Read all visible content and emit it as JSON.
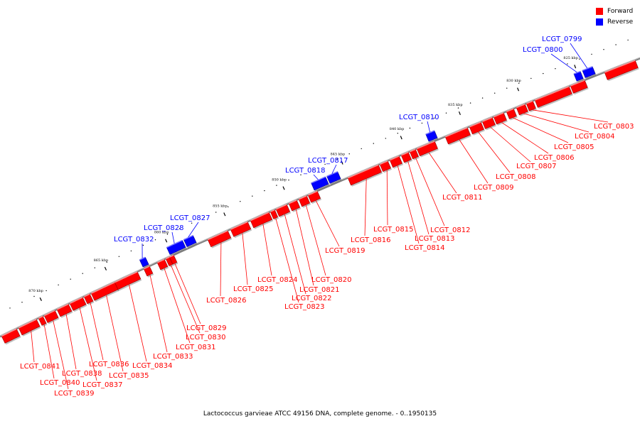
{
  "legend": {
    "forward_label": "Forward",
    "reverse_label": "Reverse",
    "forward_color": "#ff0000",
    "reverse_color": "#0000ff"
  },
  "caption": "Lactococcus garvieae ATCC 49156 DNA, complete genome. - 0..1950135",
  "colors": {
    "backbone": "#808080",
    "forward": "#ff0000",
    "reverse": "#0000ff"
  },
  "ticks": {
    "major": [
      "825 kbp",
      "830 kbp",
      "835 kbp",
      "840 kbp",
      "845 kbp",
      "850 kbp",
      "855 kbp",
      "860 kbp",
      "865 kbp",
      "870 kbp"
    ]
  },
  "genes": [
    {
      "name": "LCGT_0799",
      "strand": "reverse"
    },
    {
      "name": "LCGT_0800",
      "strand": "reverse"
    },
    {
      "name": "LCGT_0803",
      "strand": "forward"
    },
    {
      "name": "LCGT_0804",
      "strand": "forward"
    },
    {
      "name": "LCGT_0805",
      "strand": "forward"
    },
    {
      "name": "LCGT_0806",
      "strand": "forward"
    },
    {
      "name": "LCGT_0807",
      "strand": "forward"
    },
    {
      "name": "LCGT_0808",
      "strand": "forward"
    },
    {
      "name": "LCGT_0809",
      "strand": "forward"
    },
    {
      "name": "LCGT_0810",
      "strand": "reverse"
    },
    {
      "name": "LCGT_0811",
      "strand": "forward"
    },
    {
      "name": "LCGT_0812",
      "strand": "forward"
    },
    {
      "name": "LCGT_0813",
      "strand": "forward"
    },
    {
      "name": "LCGT_0814",
      "strand": "forward"
    },
    {
      "name": "LCGT_0815",
      "strand": "forward"
    },
    {
      "name": "LCGT_0816",
      "strand": "forward"
    },
    {
      "name": "LCGT_0817",
      "strand": "reverse"
    },
    {
      "name": "LCGT_0818",
      "strand": "reverse"
    },
    {
      "name": "LCGT_0819",
      "strand": "forward"
    },
    {
      "name": "LCGT_0820",
      "strand": "forward"
    },
    {
      "name": "LCGT_0821",
      "strand": "forward"
    },
    {
      "name": "LCGT_0822",
      "strand": "forward"
    },
    {
      "name": "LCGT_0823",
      "strand": "forward"
    },
    {
      "name": "LCGT_0824",
      "strand": "forward"
    },
    {
      "name": "LCGT_0825",
      "strand": "forward"
    },
    {
      "name": "LCGT_0826",
      "strand": "forward"
    },
    {
      "name": "LCGT_0827",
      "strand": "reverse"
    },
    {
      "name": "LCGT_0828",
      "strand": "reverse"
    },
    {
      "name": "LCGT_0829",
      "strand": "forward"
    },
    {
      "name": "LCGT_0830",
      "strand": "forward"
    },
    {
      "name": "LCGT_0831",
      "strand": "forward"
    },
    {
      "name": "LCGT_0832",
      "strand": "reverse"
    },
    {
      "name": "LCGT_0833",
      "strand": "forward"
    },
    {
      "name": "LCGT_0834",
      "strand": "forward"
    },
    {
      "name": "LCGT_0835",
      "strand": "forward"
    },
    {
      "name": "LCGT_0836",
      "strand": "forward"
    },
    {
      "name": "LCGT_0837",
      "strand": "forward"
    },
    {
      "name": "LCGT_0838",
      "strand": "forward"
    },
    {
      "name": "LCGT_0839",
      "strand": "forward"
    },
    {
      "name": "LCGT_0840",
      "strand": "forward"
    },
    {
      "name": "LCGT_0841",
      "strand": "forward"
    }
  ]
}
